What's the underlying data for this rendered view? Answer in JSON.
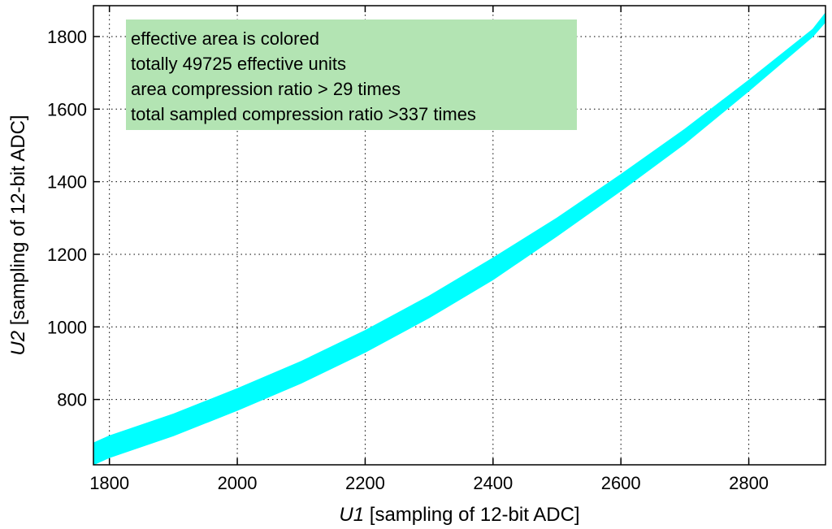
{
  "chart_data": {
    "type": "area",
    "title": "",
    "xlabel_var": "U1",
    "xlabel_rest": " [sampling of 12-bit ADC]",
    "ylabel_var": "U2",
    "ylabel_rest": " [sampling of 12-bit ADC]",
    "xlim": [
      1775,
      2920
    ],
    "ylim": [
      620,
      1885
    ],
    "xticks": [
      1800,
      2000,
      2200,
      2400,
      2600,
      2800
    ],
    "yticks": [
      800,
      1000,
      1200,
      1400,
      1600,
      1800
    ],
    "grid": true,
    "band_color": "#00ffff",
    "annotation_bg": "#b3e4b3",
    "band": {
      "x": [
        1775,
        1800,
        1900,
        2000,
        2100,
        2200,
        2300,
        2400,
        2500,
        2600,
        2700,
        2800,
        2900,
        2920
      ],
      "upper": [
        680,
        700,
        760,
        830,
        905,
        990,
        1085,
        1190,
        1300,
        1420,
        1545,
        1680,
        1820,
        1865
      ],
      "lower": [
        620,
        640,
        700,
        770,
        845,
        930,
        1025,
        1130,
        1250,
        1375,
        1505,
        1650,
        1800,
        1840
      ]
    },
    "annotation": [
      "effective area is colored",
      "totally 49725 effective units",
      "area compression ratio > 29 times",
      "total sampled compression ratio >337 times"
    ]
  }
}
